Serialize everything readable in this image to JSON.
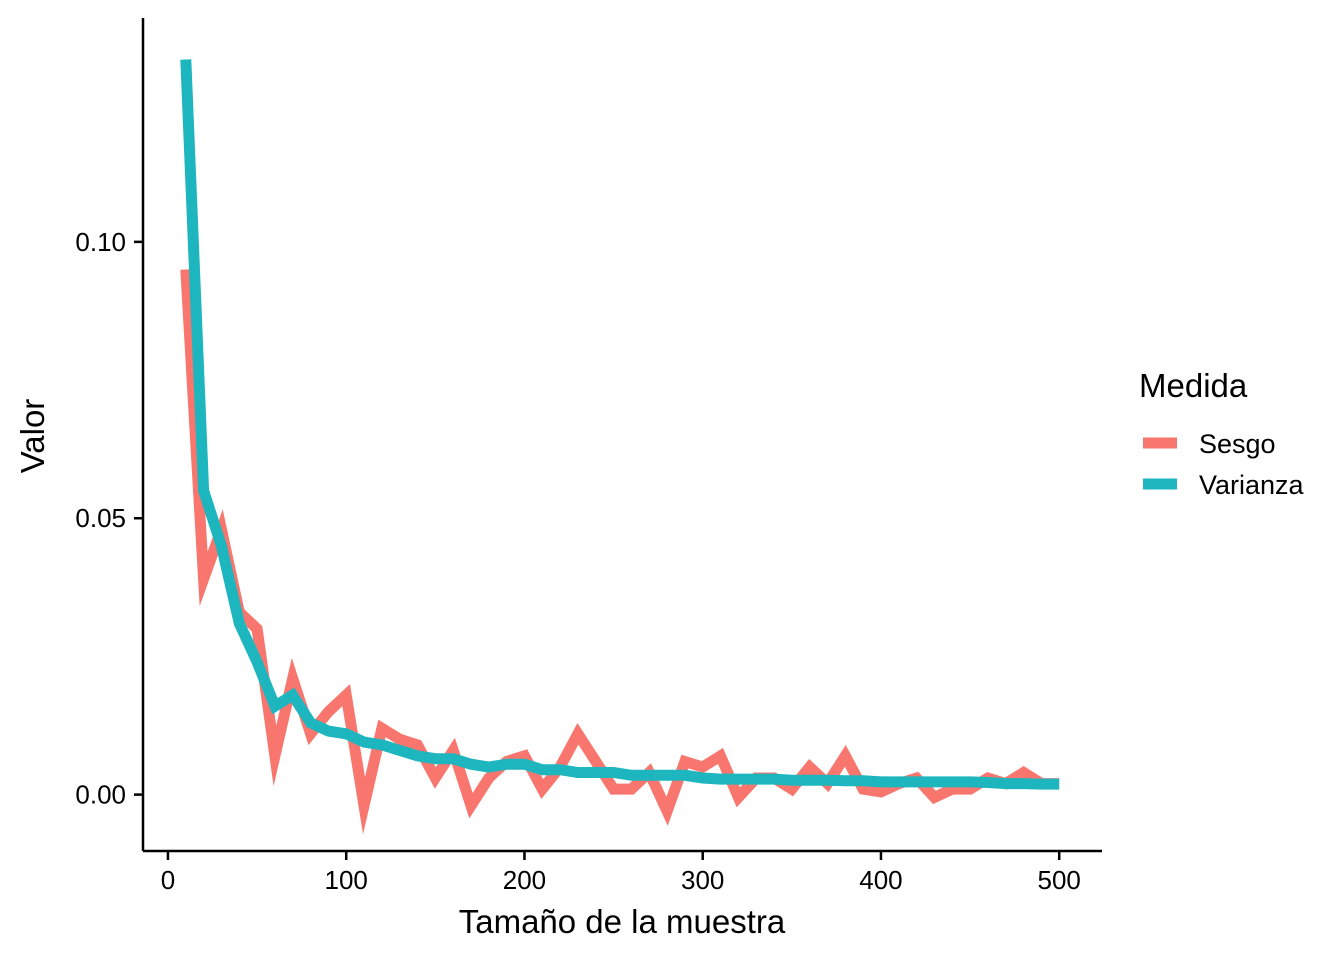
{
  "chart_data": {
    "type": "line",
    "title": "",
    "xlabel": "Tamaño de la muestra",
    "ylabel": "Valor",
    "xlim": [
      -14,
      524
    ],
    "ylim": [
      -0.0102,
      0.1405
    ],
    "xticks": [
      0,
      100,
      200,
      300,
      400,
      500
    ],
    "xtick_labels": [
      "0",
      "100",
      "200",
      "300",
      "400",
      "500"
    ],
    "yticks": [
      0.0,
      0.05,
      0.1
    ],
    "ytick_labels": [
      "0.00",
      "0.05",
      "0.10"
    ],
    "grid": false,
    "legend": {
      "title": "Medida",
      "placement": "right"
    },
    "x": [
      10,
      20,
      30,
      40,
      50,
      60,
      70,
      80,
      90,
      100,
      110,
      120,
      130,
      140,
      150,
      160,
      170,
      180,
      190,
      200,
      210,
      220,
      230,
      240,
      250,
      260,
      270,
      280,
      290,
      300,
      310,
      320,
      330,
      340,
      350,
      360,
      370,
      380,
      390,
      400,
      410,
      420,
      430,
      440,
      450,
      460,
      470,
      480,
      490,
      500
    ],
    "series": [
      {
        "name": "Sesgo",
        "color": "#F8766D",
        "values": [
          0.095,
          0.039,
          0.048,
          0.033,
          0.03,
          0.007,
          0.021,
          0.011,
          0.015,
          0.018,
          -0.002,
          0.012,
          0.01,
          0.009,
          0.003,
          0.008,
          -0.002,
          0.003,
          0.006,
          0.007,
          0.001,
          0.005,
          0.011,
          0.006,
          0.001,
          0.001,
          0.004,
          -0.003,
          0.006,
          0.005,
          0.007,
          -0.0005,
          0.003,
          0.003,
          0.001,
          0.005,
          0.002,
          0.007,
          0.001,
          0.0005,
          0.002,
          0.003,
          -0.0005,
          0.001,
          0.001,
          0.003,
          0.002,
          0.004,
          0.002,
          0.002
        ]
      },
      {
        "name": "Varianza",
        "color": "#1DB6BE",
        "values": [
          0.133,
          0.055,
          0.045,
          0.031,
          0.024,
          0.016,
          0.018,
          0.013,
          0.0115,
          0.011,
          0.0095,
          0.009,
          0.008,
          0.007,
          0.0065,
          0.0065,
          0.0055,
          0.005,
          0.0055,
          0.0055,
          0.0045,
          0.0045,
          0.004,
          0.004,
          0.004,
          0.0035,
          0.0035,
          0.0035,
          0.0035,
          0.003,
          0.0028,
          0.0028,
          0.0028,
          0.0028,
          0.0026,
          0.0026,
          0.0026,
          0.0025,
          0.0025,
          0.0023,
          0.0023,
          0.0023,
          0.0023,
          0.0023,
          0.0023,
          0.0022,
          0.002,
          0.002,
          0.0019,
          0.0019
        ]
      }
    ]
  }
}
